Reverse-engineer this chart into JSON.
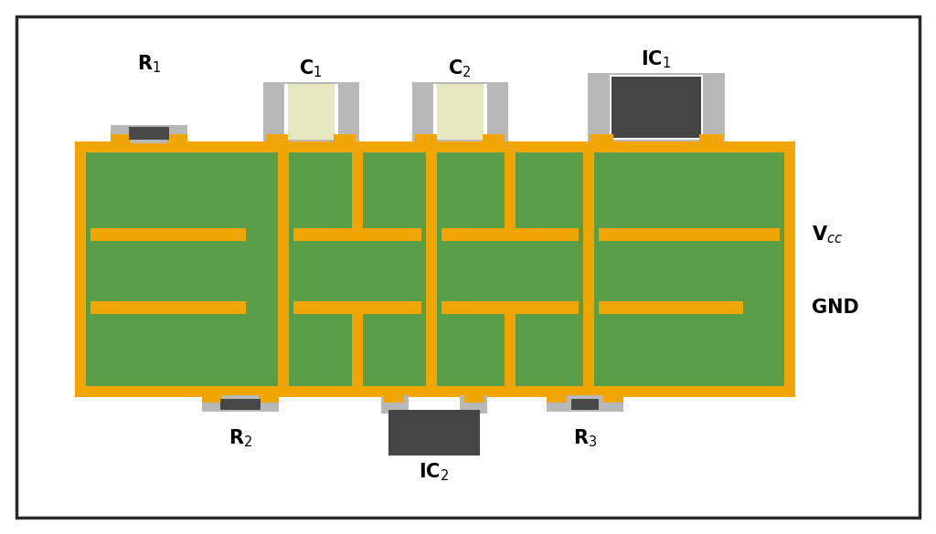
{
  "bg_color": "#ffffff",
  "border_color": "#2a2a2a",
  "pcb_color": "#5a9e47",
  "copper_color": "#f0a500",
  "pad_light": "#b8b8b8",
  "pad_dark": "#484848",
  "cap_body": "#e8e8c0",
  "ic_dark": "#454545",
  "white_strip": "#ffffff",
  "figsize": [
    10.24,
    5.85
  ],
  "dpi": 100
}
